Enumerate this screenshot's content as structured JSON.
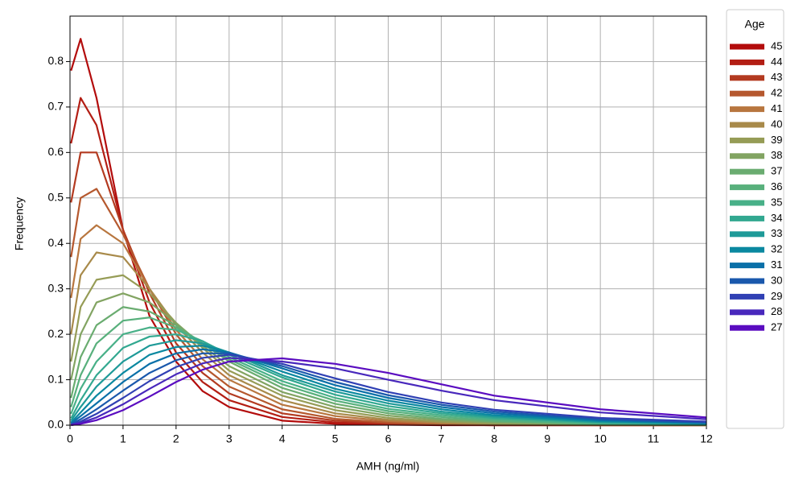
{
  "chart_data": {
    "type": "line",
    "xlabel": "AMH (ng/ml)",
    "ylabel": "Frequency",
    "legend_title": "Age",
    "legend": "outside right",
    "xlim": [
      0,
      12
    ],
    "ylim": [
      0,
      0.9
    ],
    "xticks": [
      0,
      1,
      2,
      3,
      4,
      5,
      6,
      7,
      8,
      9,
      10,
      11,
      12
    ],
    "yticks": [
      {
        "value": 0,
        "label": "0.0"
      },
      0.1,
      0.2,
      0.3,
      0.4,
      0.5,
      0.6,
      0.7,
      0.8
    ],
    "grid": true,
    "x": [
      0.02,
      0.2,
      0.5,
      1,
      1.5,
      2,
      2.5,
      3,
      4,
      5,
      6,
      7,
      8,
      10,
      12
    ],
    "series": [
      {
        "name": "45",
        "color": "#b30c0c",
        "values": [
          0.78,
          0.85,
          0.72,
          0.43,
          0.24,
          0.14,
          0.075,
          0.04,
          0.01,
          0.003,
          0.001,
          0,
          0,
          0,
          0
        ]
      },
      {
        "name": "44",
        "color": "#b31e14",
        "values": [
          0.62,
          0.72,
          0.66,
          0.43,
          0.27,
          0.16,
          0.095,
          0.055,
          0.018,
          0.006,
          0.002,
          0.001,
          0,
          0,
          0
        ]
      },
      {
        "name": "43",
        "color": "#b33a20",
        "values": [
          0.49,
          0.6,
          0.6,
          0.43,
          0.29,
          0.18,
          0.115,
          0.07,
          0.026,
          0.01,
          0.004,
          0.001,
          0,
          0,
          0
        ]
      },
      {
        "name": "42",
        "color": "#b5582e",
        "values": [
          0.37,
          0.5,
          0.52,
          0.42,
          0.3,
          0.2,
          0.13,
          0.085,
          0.035,
          0.014,
          0.006,
          0.002,
          0.001,
          0,
          0
        ]
      },
      {
        "name": "41",
        "color": "#b8763f",
        "values": [
          0.28,
          0.41,
          0.44,
          0.4,
          0.3,
          0.21,
          0.145,
          0.1,
          0.045,
          0.02,
          0.009,
          0.004,
          0.002,
          0,
          0
        ]
      },
      {
        "name": "40",
        "color": "#a88a4a",
        "values": [
          0.2,
          0.33,
          0.38,
          0.37,
          0.3,
          0.22,
          0.16,
          0.11,
          0.055,
          0.026,
          0.012,
          0.006,
          0.003,
          0.001,
          0
        ]
      },
      {
        "name": "39",
        "color": "#969c56",
        "values": [
          0.14,
          0.26,
          0.32,
          0.33,
          0.29,
          0.225,
          0.17,
          0.12,
          0.065,
          0.033,
          0.016,
          0.008,
          0.004,
          0.001,
          0
        ]
      },
      {
        "name": "38",
        "color": "#82a462",
        "values": [
          0.1,
          0.2,
          0.27,
          0.29,
          0.27,
          0.225,
          0.175,
          0.13,
          0.073,
          0.04,
          0.021,
          0.011,
          0.006,
          0.002,
          0
        ]
      },
      {
        "name": "37",
        "color": "#6aac70",
        "values": [
          0.06,
          0.15,
          0.22,
          0.26,
          0.25,
          0.22,
          0.18,
          0.14,
          0.082,
          0.047,
          0.026,
          0.014,
          0.008,
          0.002,
          0.001
        ]
      },
      {
        "name": "36",
        "color": "#58b07c",
        "values": [
          0.04,
          0.11,
          0.18,
          0.23,
          0.237,
          0.215,
          0.18,
          0.145,
          0.09,
          0.054,
          0.031,
          0.018,
          0.01,
          0.003,
          0.001
        ]
      },
      {
        "name": "35",
        "color": "#48b088",
        "values": [
          0.025,
          0.08,
          0.14,
          0.2,
          0.215,
          0.21,
          0.185,
          0.15,
          0.097,
          0.06,
          0.036,
          0.022,
          0.013,
          0.004,
          0.001
        ]
      },
      {
        "name": "34",
        "color": "#32a890",
        "values": [
          0.015,
          0.055,
          0.11,
          0.17,
          0.195,
          0.2,
          0.185,
          0.155,
          0.105,
          0.067,
          0.042,
          0.026,
          0.016,
          0.006,
          0.002
        ]
      },
      {
        "name": "33",
        "color": "#1e9a98",
        "values": [
          0.01,
          0.04,
          0.085,
          0.14,
          0.175,
          0.187,
          0.18,
          0.16,
          0.11,
          0.074,
          0.048,
          0.03,
          0.019,
          0.007,
          0.003
        ]
      },
      {
        "name": "32",
        "color": "#0a88a0",
        "values": [
          0.006,
          0.028,
          0.065,
          0.115,
          0.155,
          0.172,
          0.175,
          0.16,
          0.118,
          0.08,
          0.054,
          0.035,
          0.022,
          0.009,
          0.004
        ]
      },
      {
        "name": "31",
        "color": "#0a70a8",
        "values": [
          0.004,
          0.02,
          0.048,
          0.095,
          0.135,
          0.158,
          0.167,
          0.16,
          0.125,
          0.088,
          0.06,
          0.04,
          0.026,
          0.011,
          0.005
        ]
      },
      {
        "name": "30",
        "color": "#1a58ac",
        "values": [
          0.002,
          0.013,
          0.035,
          0.076,
          0.115,
          0.143,
          0.158,
          0.158,
          0.13,
          0.095,
          0.066,
          0.045,
          0.03,
          0.013,
          0.006
        ]
      },
      {
        "name": "29",
        "color": "#3040b4",
        "values": [
          0.001,
          0.008,
          0.025,
          0.06,
          0.097,
          0.128,
          0.148,
          0.155,
          0.135,
          0.103,
          0.073,
          0.05,
          0.034,
          0.016,
          0.008
        ]
      },
      {
        "name": "28",
        "color": "#4828bc",
        "values": [
          0.001,
          0.005,
          0.017,
          0.046,
          0.08,
          0.112,
          0.136,
          0.148,
          0.14,
          0.125,
          0.1,
          0.076,
          0.055,
          0.028,
          0.013
        ]
      },
      {
        "name": "27",
        "color": "#5a0cc0",
        "values": [
          0,
          0.003,
          0.011,
          0.033,
          0.063,
          0.095,
          0.122,
          0.14,
          0.147,
          0.135,
          0.115,
          0.09,
          0.065,
          0.035,
          0.017
        ]
      }
    ]
  }
}
